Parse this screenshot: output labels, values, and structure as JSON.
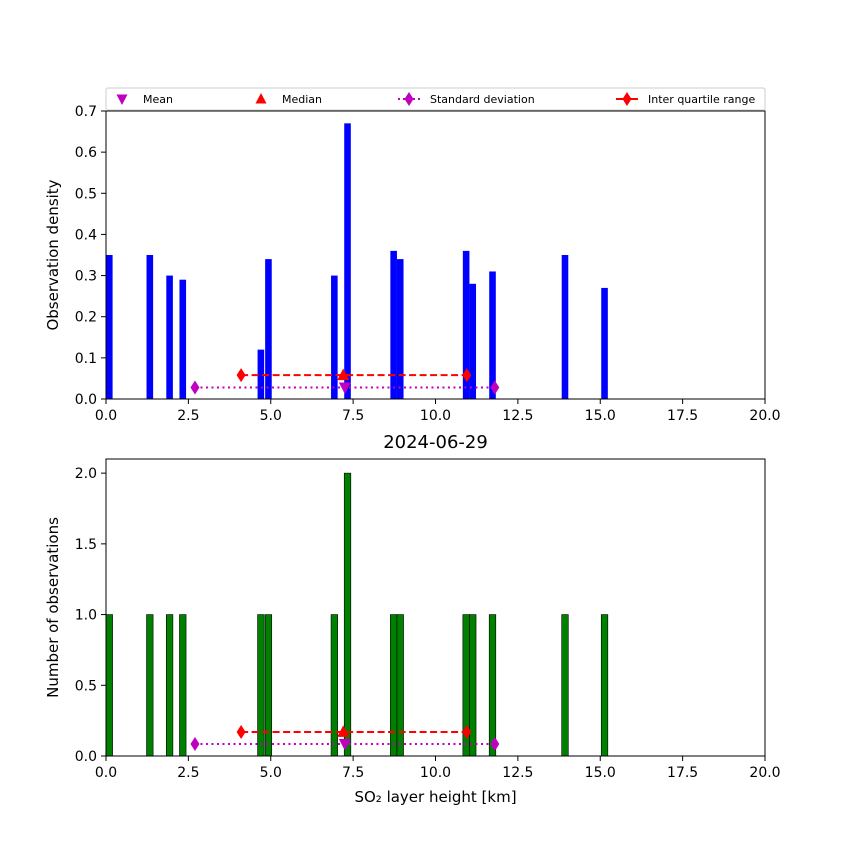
{
  "chart_data": [
    {
      "type": "bar",
      "panel": "top",
      "title": "",
      "xlabel": "",
      "ylabel": "Observation density",
      "xlim": [
        0,
        20
      ],
      "ylim": [
        0,
        0.7
      ],
      "xticks": [
        "0.0",
        "2.5",
        "5.0",
        "7.5",
        "10.0",
        "12.5",
        "15.0",
        "17.5",
        "20.0"
      ],
      "yticks": [
        "0.0",
        "0.1",
        "0.2",
        "0.3",
        "0.4",
        "0.5",
        "0.6",
        "0.7"
      ],
      "bar_color": "#0000ff",
      "bars": [
        {
          "x": 0.1,
          "value": 0.35
        },
        {
          "x": 1.33,
          "value": 0.35
        },
        {
          "x": 1.93,
          "value": 0.3
        },
        {
          "x": 2.33,
          "value": 0.29
        },
        {
          "x": 4.7,
          "value": 0.12
        },
        {
          "x": 4.93,
          "value": 0.34
        },
        {
          "x": 6.93,
          "value": 0.3
        },
        {
          "x": 7.33,
          "value": 0.67
        },
        {
          "x": 8.73,
          "value": 0.36
        },
        {
          "x": 8.93,
          "value": 0.34
        },
        {
          "x": 10.93,
          "value": 0.36
        },
        {
          "x": 11.13,
          "value": 0.28
        },
        {
          "x": 11.73,
          "value": 0.31
        },
        {
          "x": 13.93,
          "value": 0.35
        },
        {
          "x": 15.13,
          "value": 0.27
        }
      ],
      "stats": {
        "mean": {
          "x": 7.25,
          "y": 0.028
        },
        "median": {
          "x": 7.2,
          "y": 0.058
        },
        "std": {
          "x": [
            2.7,
            11.8
          ],
          "y": 0.028
        },
        "iqr": {
          "x": [
            4.1,
            10.95
          ],
          "y": 0.058
        }
      },
      "legend": {
        "position": "top",
        "items": [
          {
            "label": "Mean",
            "color": "#bf00bf",
            "marker": "triangle-down"
          },
          {
            "label": "Median",
            "color": "#ff0000",
            "marker": "triangle-up"
          },
          {
            "label": "Standard deviation",
            "color": "#bf00bf",
            "marker": "diamond",
            "line": "dotted"
          },
          {
            "label": "Inter quartile range",
            "color": "#ff0000",
            "marker": "diamond",
            "line": "solid"
          }
        ]
      }
    },
    {
      "type": "bar",
      "panel": "bottom",
      "title": "2024-06-29",
      "xlabel": "SO₂ layer height [km]",
      "ylabel": "Number of observations",
      "xlim": [
        0,
        20
      ],
      "ylim": [
        0,
        2.1
      ],
      "xticks": [
        "0.0",
        "2.5",
        "5.0",
        "7.5",
        "10.0",
        "12.5",
        "15.0",
        "17.5",
        "20.0"
      ],
      "yticks": [
        "0.0",
        "0.5",
        "1.0",
        "1.5",
        "2.0"
      ],
      "bar_color": "#008000",
      "bars": [
        {
          "x": 0.1,
          "value": 1
        },
        {
          "x": 1.33,
          "value": 1
        },
        {
          "x": 1.93,
          "value": 1
        },
        {
          "x": 2.33,
          "value": 1
        },
        {
          "x": 4.7,
          "value": 1
        },
        {
          "x": 4.93,
          "value": 1
        },
        {
          "x": 6.93,
          "value": 1
        },
        {
          "x": 7.33,
          "value": 2
        },
        {
          "x": 8.73,
          "value": 1
        },
        {
          "x": 8.93,
          "value": 1
        },
        {
          "x": 10.93,
          "value": 1
        },
        {
          "x": 11.13,
          "value": 1
        },
        {
          "x": 11.73,
          "value": 1
        },
        {
          "x": 13.93,
          "value": 1
        },
        {
          "x": 15.13,
          "value": 1
        }
      ],
      "stats": {
        "mean": {
          "x": 7.25,
          "y": 0.085
        },
        "median": {
          "x": 7.2,
          "y": 0.17
        },
        "std": {
          "x": [
            2.7,
            11.8
          ],
          "y": 0.085
        },
        "iqr": {
          "x": [
            4.1,
            10.95
          ],
          "y": 0.17
        }
      }
    }
  ]
}
